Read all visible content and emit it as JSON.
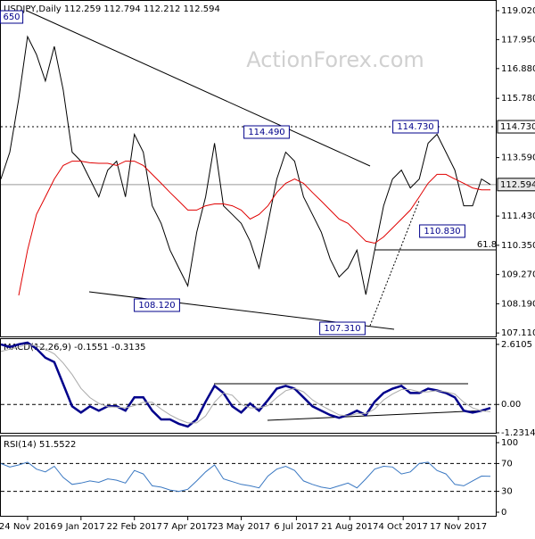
{
  "chart_data": [
    {
      "type": "line",
      "title": "USDJPY,Daily  112.259 112.794 112.212 112.594",
      "watermark": "ActionForex.com",
      "x": [
        0,
        5,
        10,
        15,
        20,
        25,
        30,
        35,
        40,
        45,
        50,
        55,
        60,
        65,
        70,
        75,
        80,
        85,
        90,
        95,
        100,
        105,
        110,
        115,
        120,
        125,
        130,
        135,
        140,
        145,
        150,
        155,
        160,
        165,
        170,
        175,
        180,
        185,
        190,
        195,
        200,
        205,
        210,
        215,
        220,
        225,
        230,
        235,
        240,
        245,
        250,
        255,
        260,
        265,
        270,
        275
      ],
      "xlim": [
        0,
        278
      ],
      "ylim": [
        106.95,
        119.38
      ],
      "yticks": [
        {
          "value": 119.02,
          "label": "119.020"
        },
        {
          "value": 117.95,
          "label": "117.950"
        },
        {
          "value": 116.88,
          "label": "116.880"
        },
        {
          "value": 115.78,
          "label": "115.780"
        },
        {
          "value": 113.59,
          "label": "113.590"
        },
        {
          "value": 111.43,
          "label": "111.430"
        },
        {
          "value": 110.35,
          "label": "110.350"
        },
        {
          "value": 109.27,
          "label": "109.270"
        },
        {
          "value": 108.19,
          "label": "108.190"
        },
        {
          "value": 107.11,
          "label": "107.110"
        }
      ],
      "levels": [
        {
          "value": 114.73,
          "label": "114.730"
        },
        {
          "value": 112.594,
          "label": "112.594"
        }
      ],
      "series": [
        {
          "color": "#000000",
          "values": [
            112.8,
            113.79,
            115.76,
            118.06,
            117.4,
            116.42,
            117.7,
            116.09,
            113.79,
            113.46,
            112.8,
            112.14,
            113.13,
            113.46,
            112.14,
            114.45,
            113.79,
            111.81,
            111.16,
            110.17,
            109.51,
            108.85,
            110.83,
            112.14,
            114.12,
            111.81,
            111.49,
            111.16,
            110.5,
            109.51,
            111.16,
            112.8,
            113.79,
            113.46,
            112.14,
            111.49,
            110.83,
            109.84,
            109.18,
            109.51,
            110.17,
            108.53,
            110.17,
            111.81,
            112.8,
            113.13,
            112.47,
            112.8,
            114.12,
            114.45,
            113.79,
            113.13,
            111.81,
            111.81,
            112.8,
            112.594
          ]
        },
        {
          "color": "#e00000",
          "values": [
            null,
            null,
            108.5,
            110.17,
            111.49,
            112.14,
            112.8,
            113.3,
            113.46,
            113.46,
            113.4,
            113.38,
            113.38,
            113.3,
            113.46,
            113.46,
            113.3,
            112.97,
            112.64,
            112.3,
            111.98,
            111.65,
            111.65,
            111.81,
            111.88,
            111.88,
            111.81,
            111.65,
            111.32,
            111.49,
            111.81,
            112.3,
            112.64,
            112.8,
            112.64,
            112.3,
            111.98,
            111.65,
            111.32,
            111.16,
            110.83,
            110.5,
            110.43,
            110.66,
            110.99,
            111.32,
            111.65,
            112.14,
            112.64,
            112.97,
            112.97,
            112.8,
            112.64,
            112.47,
            112.4,
            112.4
          ]
        }
      ],
      "annotations": [
        "650",
        "114.490",
        "114.730",
        "108.120",
        "107.310",
        "110.830",
        "61.8"
      ]
    },
    {
      "type": "line",
      "title": "MACD(12,26,9) -0.1551 -0.3135",
      "x": [
        0,
        5,
        10,
        15,
        20,
        25,
        30,
        35,
        40,
        45,
        50,
        55,
        60,
        65,
        70,
        75,
        80,
        85,
        90,
        95,
        100,
        105,
        110,
        115,
        120,
        125,
        130,
        135,
        140,
        145,
        150,
        155,
        160,
        165,
        170,
        175,
        180,
        185,
        190,
        195,
        200,
        205,
        210,
        215,
        220,
        225,
        230,
        235,
        240,
        245,
        250,
        255,
        260,
        265,
        270,
        275
      ],
      "xlim": [
        0,
        278
      ],
      "ylim": [
        -1.27,
        2.84
      ],
      "yticks": [
        2.6105,
        {
          "value": 0,
          "label": "0.00"
        },
        -1.2314
      ],
      "series": [
        {
          "color": "#00008b",
          "values": [
            2.61,
            2.5,
            2.61,
            2.69,
            2.42,
            2.03,
            1.84,
            0.88,
            -0.08,
            -0.35,
            -0.08,
            -0.27,
            -0.08,
            -0.08,
            -0.27,
            0.31,
            0.31,
            -0.27,
            -0.65,
            -0.65,
            -0.84,
            -0.96,
            -0.65,
            0.12,
            0.81,
            0.5,
            -0.08,
            -0.35,
            0.04,
            -0.27,
            0.19,
            0.69,
            0.81,
            0.69,
            0.31,
            -0.08,
            -0.27,
            -0.46,
            -0.58,
            -0.46,
            -0.27,
            -0.46,
            0.12,
            0.5,
            0.69,
            0.81,
            0.5,
            0.5,
            0.69,
            0.61,
            0.5,
            0.31,
            -0.27,
            -0.35,
            -0.27,
            -0.1551
          ]
        },
        {
          "color": "#aaaaaa",
          "values": [
            2.3,
            2.4,
            2.5,
            2.6,
            2.55,
            2.4,
            2.2,
            1.8,
            1.3,
            0.7,
            0.3,
            0.05,
            -0.1,
            -0.12,
            -0.15,
            -0.05,
            0.1,
            0.1,
            -0.2,
            -0.45,
            -0.65,
            -0.8,
            -0.8,
            -0.5,
            0.1,
            0.5,
            0.4,
            0.0,
            -0.15,
            -0.15,
            -0.05,
            0.3,
            0.6,
            0.7,
            0.55,
            0.2,
            -0.05,
            -0.25,
            -0.45,
            -0.5,
            -0.4,
            -0.4,
            -0.2,
            0.2,
            0.45,
            0.65,
            0.65,
            0.55,
            0.55,
            0.6,
            0.55,
            0.45,
            0.1,
            -0.15,
            -0.28,
            -0.3135
          ]
        }
      ]
    },
    {
      "type": "line",
      "title": "RSI(14) 51.5522",
      "x": [
        0,
        5,
        10,
        15,
        20,
        25,
        30,
        35,
        40,
        45,
        50,
        55,
        60,
        65,
        70,
        75,
        80,
        85,
        90,
        95,
        100,
        105,
        110,
        115,
        120,
        125,
        130,
        135,
        140,
        145,
        150,
        155,
        160,
        165,
        170,
        175,
        180,
        185,
        190,
        195,
        200,
        205,
        210,
        215,
        220,
        225,
        230,
        235,
        240,
        245,
        250,
        255,
        260,
        265,
        270,
        275
      ],
      "xlim": [
        0,
        278
      ],
      "ylim": [
        -6.4,
        109
      ],
      "yticks": [
        100,
        70,
        30,
        0
      ],
      "xticks": [
        {
          "value": 15,
          "label": "24 Nov 2016"
        },
        {
          "value": 45,
          "label": "9 Jan 2017"
        },
        {
          "value": 75,
          "label": "22 Feb 2017"
        },
        {
          "value": 105,
          "label": "7 Apr 2017"
        },
        {
          "value": 135,
          "label": "23 May 2017"
        },
        {
          "value": 166,
          "label": "6 Jul 2017"
        },
        {
          "value": 196,
          "label": "21 Aug 2017"
        },
        {
          "value": 226,
          "label": "4 Oct 2017"
        },
        {
          "value": 257,
          "label": "17 Nov 2017"
        }
      ],
      "series": [
        {
          "color": "#3a78c2",
          "values": [
            70,
            65,
            68,
            72,
            62,
            58,
            66,
            50,
            40,
            42,
            45,
            43,
            48,
            46,
            42,
            60,
            55,
            38,
            36,
            32,
            30,
            33,
            45,
            58,
            68,
            48,
            44,
            40,
            38,
            35,
            52,
            62,
            66,
            60,
            45,
            40,
            36,
            34,
            38,
            42,
            35,
            48,
            62,
            66,
            65,
            55,
            58,
            70,
            72,
            60,
            55,
            40,
            38,
            45,
            52,
            51.55
          ]
        }
      ]
    }
  ]
}
